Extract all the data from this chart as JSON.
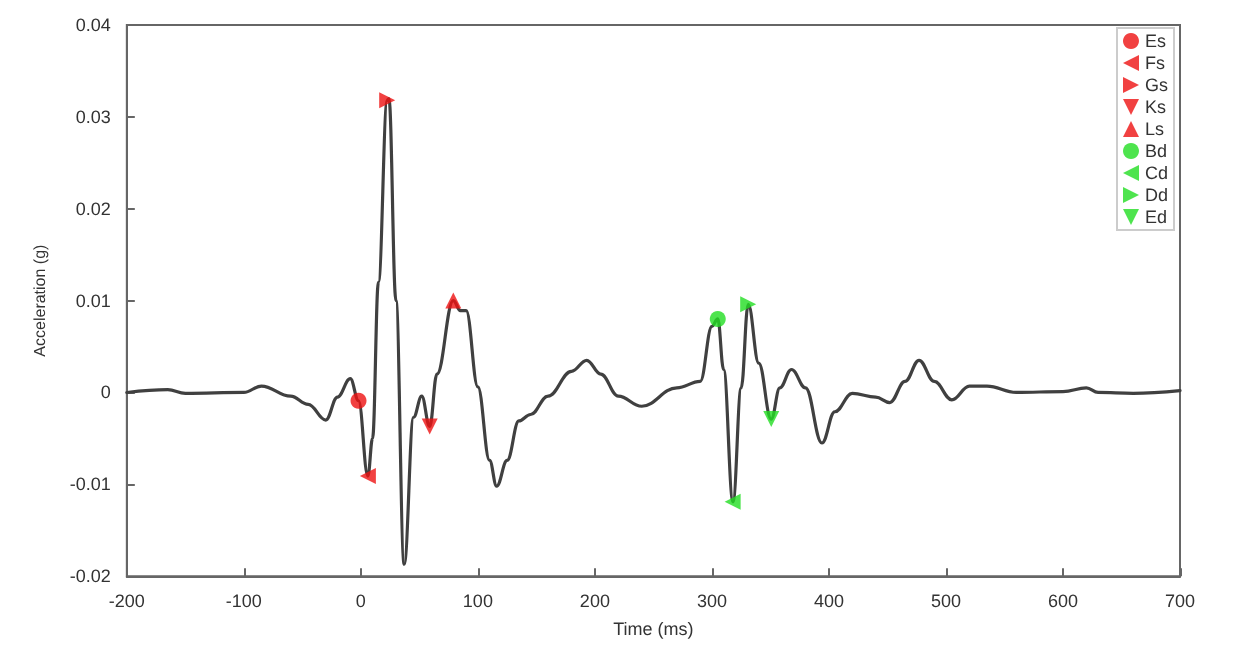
{
  "chart_data": {
    "type": "line",
    "xlabel": "Time (ms)",
    "ylabel": "Acceleration (g)",
    "xlim": [
      -200,
      700
    ],
    "xticks": [
      -200,
      -100,
      0,
      100,
      200,
      300,
      400,
      500,
      600,
      700
    ],
    "ylim": [
      -0.02,
      0.04
    ],
    "yticks": [
      -0.02,
      -0.01,
      0,
      0.01,
      0.02,
      0.03,
      0.04
    ],
    "grid": false,
    "legend": "top right",
    "series": [
      {
        "color": "#404040",
        "marker": "none",
        "x": [
          -200,
          -165,
          -150,
          -100,
          -85,
          -60,
          -45,
          -30,
          -20,
          -9,
          -2,
          6,
          10,
          15,
          22.5,
          24,
          30,
          37,
          45,
          52,
          58.8,
          65,
          79,
          85,
          90,
          100,
          110,
          116,
          125,
          135,
          145,
          160,
          180,
          193,
          205,
          220,
          240,
          270,
          290,
          300,
          305,
          310,
          318,
          325,
          331,
          340,
          350.7,
          358,
          368,
          380,
          394,
          405,
          420,
          440,
          452,
          465,
          477,
          490,
          505,
          520,
          535,
          560,
          600,
          620,
          630,
          660,
          700
        ],
        "values": [
          0,
          0.0003,
          -0.0001,
          0,
          0.0007,
          -0.0004,
          -0.0013,
          -0.003,
          -0.0005,
          0.0015,
          -0.0009,
          -0.0091,
          -0.005,
          0.012,
          0.0318,
          0.032,
          0.01,
          -0.0187,
          -0.0027,
          -0.0004,
          -0.0037,
          0.002,
          0.01,
          0.0089,
          0.0089,
          0.0006,
          -0.0074,
          -0.0102,
          -0.0074,
          -0.0031,
          -0.0024,
          -0.0004,
          0.0023,
          0.0035,
          0.002,
          -0.0004,
          -0.0015,
          0.0005,
          0.0012,
          0.0072,
          0.008,
          0.0025,
          -0.0119,
          0.0005,
          0.0096,
          0.0032,
          -0.0029,
          0.0005,
          0.0025,
          0.0005,
          -0.0055,
          -0.0021,
          -0.0001,
          -0.0005,
          -0.0011,
          0.0012,
          0.0035,
          0.0012,
          -0.0008,
          0.0007,
          0.0007,
          0,
          0.0001,
          0.0005,
          0,
          -0.0001,
          0.0002
        ]
      },
      {
        "type": "scatter",
        "name": "Es",
        "color": "#ee1111",
        "marker": "circle",
        "x": [
          -2
        ],
        "values": [
          -0.0009
        ]
      },
      {
        "type": "scatter",
        "name": "Fs",
        "color": "#ee1111",
        "marker": "triangle-left",
        "x": [
          6
        ],
        "values": [
          -0.0091
        ]
      },
      {
        "type": "scatter",
        "name": "Gs",
        "color": "#ee1111",
        "marker": "triangle-right",
        "x": [
          22.5
        ],
        "values": [
          0.0318
        ]
      },
      {
        "type": "scatter",
        "name": "Ks",
        "color": "#ee1111",
        "marker": "triangle-down",
        "x": [
          58.8
        ],
        "values": [
          -0.0037
        ]
      },
      {
        "type": "scatter",
        "name": "Ls",
        "color": "#ee1111",
        "marker": "triangle",
        "x": [
          79
        ],
        "values": [
          0.01
        ]
      },
      {
        "type": "scatter",
        "name": "Bd",
        "color": "#22dd22",
        "marker": "circle",
        "x": [
          305
        ],
        "values": [
          0.008
        ]
      },
      {
        "type": "scatter",
        "name": "Cd",
        "color": "#22dd22",
        "marker": "triangle-left",
        "x": [
          317.7
        ],
        "values": [
          -0.0119
        ]
      },
      {
        "type": "scatter",
        "name": "Dd",
        "color": "#22dd22",
        "marker": "triangle-right",
        "x": [
          331
        ],
        "values": [
          0.0096
        ]
      },
      {
        "type": "scatter",
        "name": "Ed",
        "color": "#22dd22",
        "marker": "triangle-down",
        "x": [
          350.7
        ],
        "values": [
          -0.0029
        ]
      }
    ]
  }
}
